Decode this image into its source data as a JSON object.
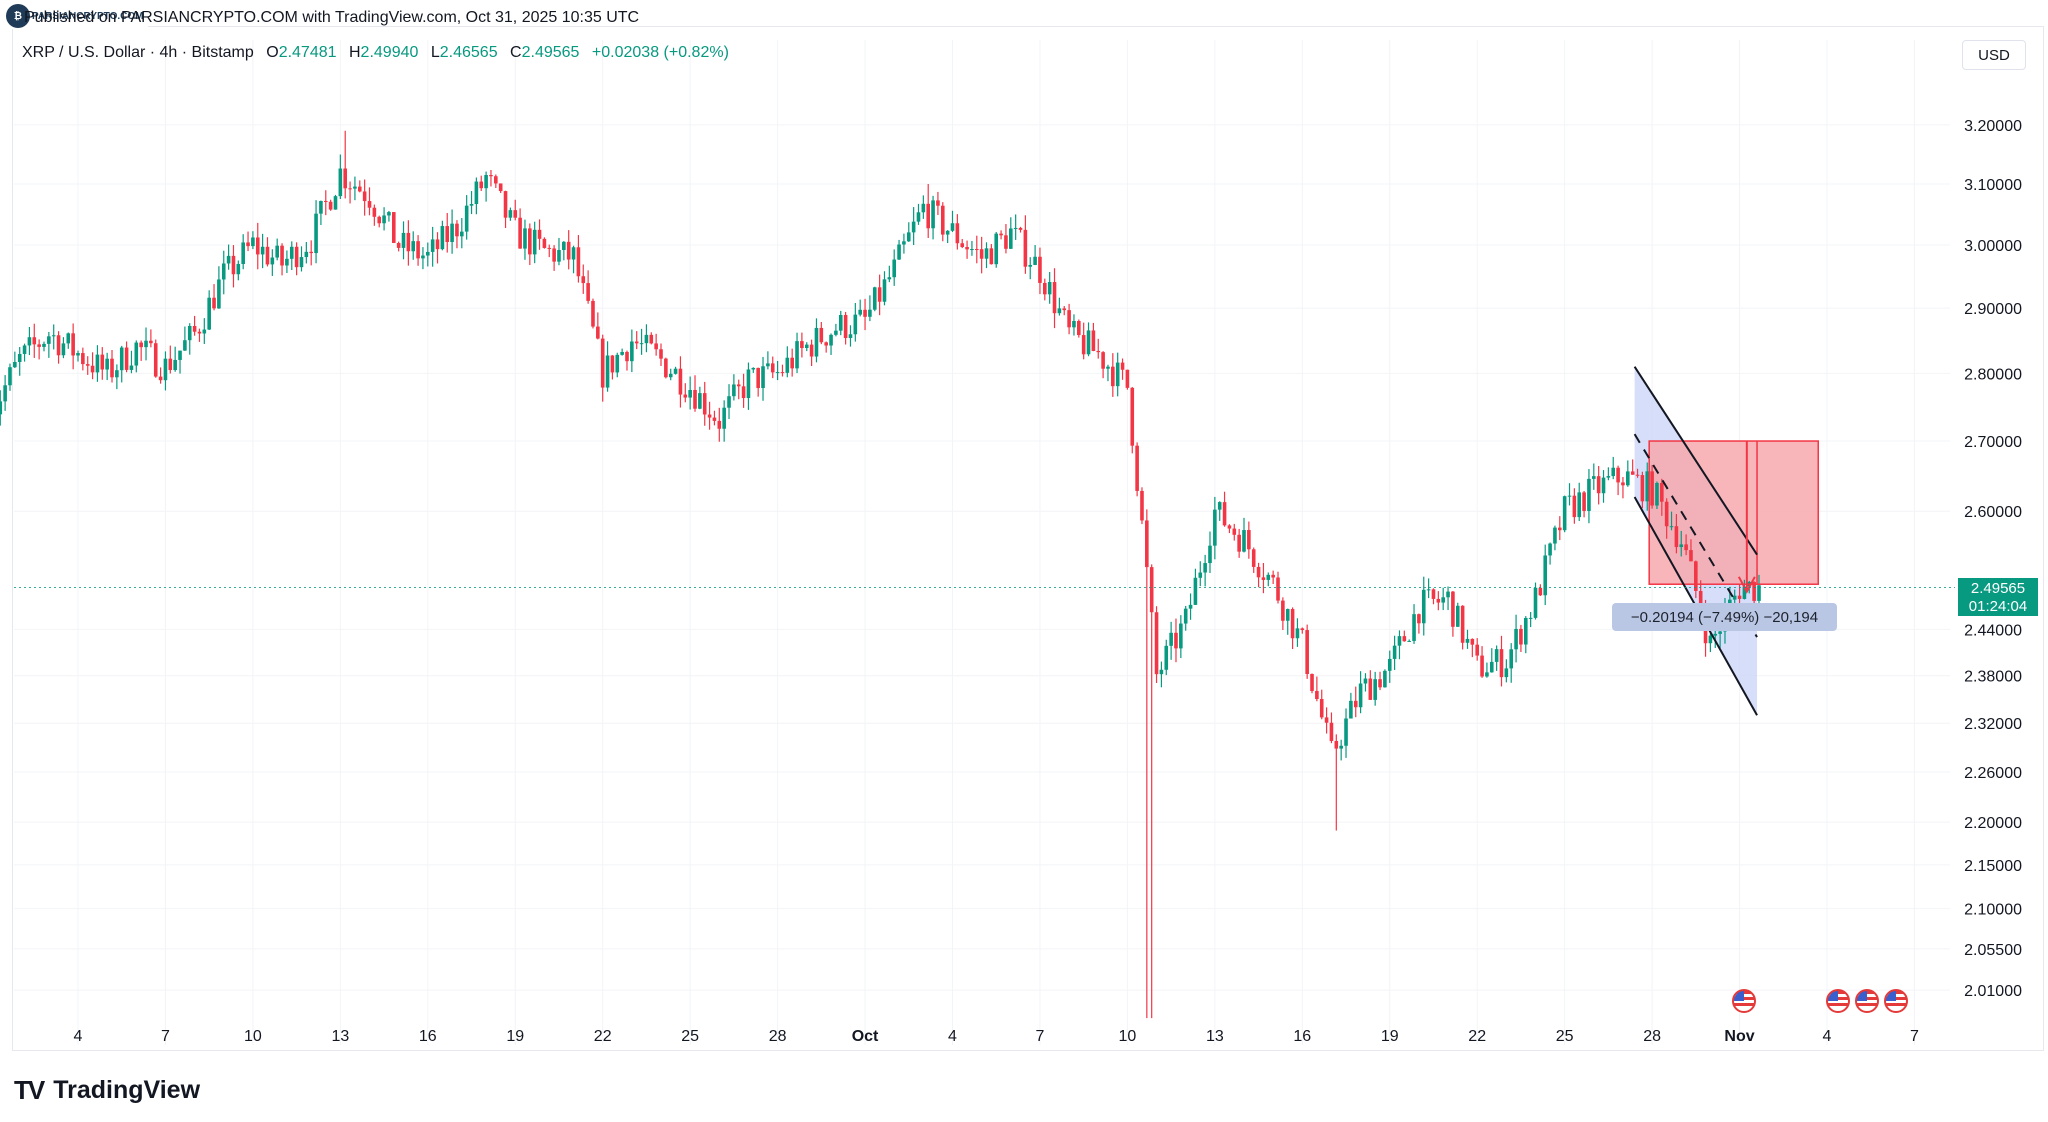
{
  "header": {
    "published": "Published on PARSIANCRYPTO.COM with TradingView.com, Oct 31, 2025 10:35 UTC",
    "watermark": "PARSIANCRYPTO.COM"
  },
  "legend": {
    "symbol": "XRP / U.S. Dollar · 4h · Bitstamp",
    "open_label": "O",
    "open": "2.47481",
    "high_label": "H",
    "high": "2.49940",
    "low_label": "L",
    "low": "2.46565",
    "close_label": "C",
    "close": "2.49565",
    "change": "+0.02038 (+0.82%)"
  },
  "currency": "USD",
  "price_tag": {
    "price": "2.49565",
    "countdown": "01:24:04"
  },
  "measure_label": "−0.20194 (−7.49%) −20,194",
  "footer": {
    "brand": "TradingView"
  },
  "colors": {
    "up": "#089981",
    "down": "#f23645",
    "channel_fill": "#c9d3f7",
    "short_risk": "#f7a9ae",
    "price_line": "#089981"
  },
  "icons": [
    "us-flag-icon",
    "us-flag-icon",
    "us-flag-icon",
    "us-flag-icon"
  ],
  "chart_data": {
    "type": "candlestick",
    "title": "XRP / U.S. Dollar · 4h · Bitstamp",
    "interval": "4h",
    "y_axis": {
      "ticks": [
        "3.20000",
        "3.10000",
        "3.00000",
        "2.90000",
        "2.80000",
        "2.70000",
        "2.60000",
        "2.44000",
        "2.38000",
        "2.32000",
        "2.26000",
        "2.20000",
        "2.15000",
        "2.10000",
        "2.05500",
        "2.01000"
      ],
      "scale": "log",
      "range": [
        1.98,
        3.26
      ]
    },
    "x_axis": {
      "ticks": [
        "4",
        "7",
        "10",
        "13",
        "16",
        "19",
        "22",
        "25",
        "28",
        "Oct",
        "4",
        "7",
        "10",
        "13",
        "16",
        "19",
        "22",
        "25",
        "28",
        "Nov",
        "4",
        "7"
      ]
    },
    "close_path": [
      [
        "Sep 1",
        2.74
      ],
      [
        "Sep 2",
        2.82
      ],
      [
        "Sep 3",
        2.86
      ],
      [
        "Sep 4",
        2.83
      ],
      [
        "Sep 5",
        2.8
      ],
      [
        "Sep 6",
        2.84
      ],
      [
        "Sep 7",
        2.81
      ],
      [
        "Sep 8",
        2.86
      ],
      [
        "Sep 9",
        2.95
      ],
      [
        "Sep 10",
        3.0
      ],
      [
        "Sep 11",
        2.97
      ],
      [
        "Sep 12",
        3.01
      ],
      [
        "Sep 13",
        3.12
      ],
      [
        "Sep 14",
        3.08
      ],
      [
        "Sep 15",
        3.0
      ],
      [
        "Sep 16",
        2.98
      ],
      [
        "Sep 17",
        3.03
      ],
      [
        "Sep 18",
        3.11
      ],
      [
        "Sep 19",
        3.02
      ],
      [
        "Sep 20",
        2.99
      ],
      [
        "Sep 21",
        2.98
      ],
      [
        "Sep 22",
        2.8
      ],
      [
        "Sep 23",
        2.85
      ],
      [
        "Sep 24",
        2.82
      ],
      [
        "Sep 25",
        2.78
      ],
      [
        "Sep 26",
        2.73
      ],
      [
        "Sep 27",
        2.79
      ],
      [
        "Sep 28",
        2.8
      ],
      [
        "Sep 29",
        2.84
      ],
      [
        "Sep 30",
        2.87
      ],
      [
        "Oct 1",
        2.88
      ],
      [
        "Oct 2",
        2.96
      ],
      [
        "Oct 3",
        3.06
      ],
      [
        "Oct 4",
        3.02
      ],
      [
        "Oct 5",
        2.98
      ],
      [
        "Oct 6",
        3.02
      ],
      [
        "Oct 7",
        2.96
      ],
      [
        "Oct 8",
        2.86
      ],
      [
        "Oct 9",
        2.83
      ],
      [
        "Oct 10",
        2.78
      ],
      [
        "Oct 11",
        2.38
      ],
      [
        "Oct 12",
        2.45
      ],
      [
        "Oct 13",
        2.6
      ],
      [
        "Oct 14",
        2.56
      ],
      [
        "Oct 15",
        2.5
      ],
      [
        "Oct 16",
        2.42
      ],
      [
        "Oct 17",
        2.28
      ],
      [
        "Oct 18",
        2.36
      ],
      [
        "Oct 19",
        2.39
      ],
      [
        "Oct 20",
        2.47
      ],
      [
        "Oct 21",
        2.48
      ],
      [
        "Oct 22",
        2.39
      ],
      [
        "Oct 23",
        2.4
      ],
      [
        "Oct 24",
        2.48
      ],
      [
        "Oct 25",
        2.6
      ],
      [
        "Oct 26",
        2.63
      ],
      [
        "Oct 27",
        2.65
      ],
      [
        "Oct 28",
        2.63
      ],
      [
        "Oct 29",
        2.56
      ],
      [
        "Oct 30",
        2.42
      ],
      [
        "Oct 31",
        2.49565
      ]
    ],
    "notable_wicks": [
      {
        "date": "Oct 10",
        "low": 1.98,
        "note": "flash crash wick"
      },
      {
        "date": "Sep 13",
        "high": 3.19
      },
      {
        "date": "Oct 3",
        "high": 3.1
      },
      {
        "date": "Oct 17",
        "low": 2.19
      }
    ],
    "annotations": {
      "descending_channel": {
        "from": "Oct 27",
        "to": "Oct 31"
      },
      "short_position": {
        "entry": 2.5,
        "stop": 2.7
      },
      "measure": "−0.20194 (−7.49%) −20,194",
      "last_price": "2.49565"
    }
  }
}
